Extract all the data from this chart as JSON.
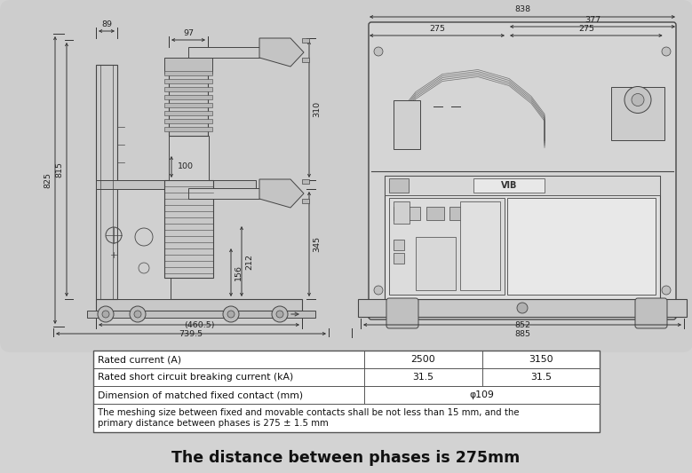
{
  "bg_color": "#d3d3d3",
  "table_rows": [
    {
      "label": "Rated current (A)",
      "col1": "2500",
      "col2": "3150"
    },
    {
      "label": "Rated short circuit breaking current (kA)",
      "col1": "31.5",
      "col2": "31.5"
    },
    {
      "label": "Dimension of matched fixed contact (mm)",
      "col1": "φ109",
      "col2": ""
    },
    {
      "label": "The meshing size between fixed and movable contacts shall be not less than 15 mm, and the",
      "col1": "",
      "col2": "",
      "label2": "primary distance between phases is 275 ± 1.5 mm"
    }
  ],
  "footer_text": "The distance between phases is 275mm",
  "col_split1": 0.535,
  "col_split2": 0.768,
  "line_color": "#444444",
  "dim_color": "#333333",
  "table_border_color": "#555555",
  "table_font_color": "#111111",
  "footer_color": "#111111",
  "title_fontsize": 12.5,
  "table_fontsize": 7.8,
  "dim_fontsize": 6.8,
  "diagram_fill": "#d8d8d8",
  "panel_fill": "#e2e2e2",
  "light_fill": "#ebebeb",
  "dark_fill": "#b8b8b8",
  "white_fill": "#f5f5f5"
}
